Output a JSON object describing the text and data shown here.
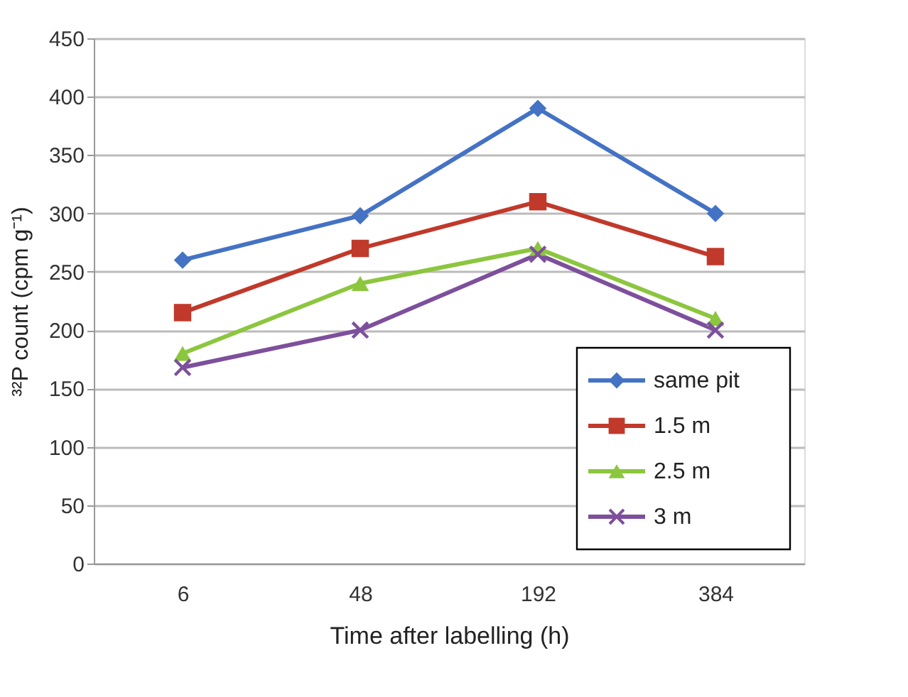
{
  "chart_data": {
    "type": "line",
    "xlabel": "Time after labelling (h)",
    "ylabel": "³²P count (cpm g⁻¹)",
    "categories": [
      "6",
      "48",
      "192",
      "384"
    ],
    "ylim": [
      0,
      450
    ],
    "yticks": [
      0,
      50,
      100,
      150,
      200,
      250,
      300,
      350,
      400,
      450
    ],
    "grid": "y",
    "legend": "bottom right",
    "line_style": "solid",
    "series": [
      {
        "name": "same pit",
        "color": "#4472c4",
        "marker": "diamond",
        "values": [
          260,
          298,
          390,
          300
        ]
      },
      {
        "name": "1.5 m",
        "color": "#c0392b",
        "marker": "square",
        "values": [
          215,
          270,
          310,
          263
        ]
      },
      {
        "name": "2.5 m",
        "color": "#8cc63f",
        "marker": "triangle",
        "values": [
          180,
          240,
          270,
          210
        ]
      },
      {
        "name": "3 m",
        "color": "#7d4f9c",
        "marker": "cross",
        "values": [
          168,
          200,
          265,
          200
        ]
      }
    ]
  }
}
